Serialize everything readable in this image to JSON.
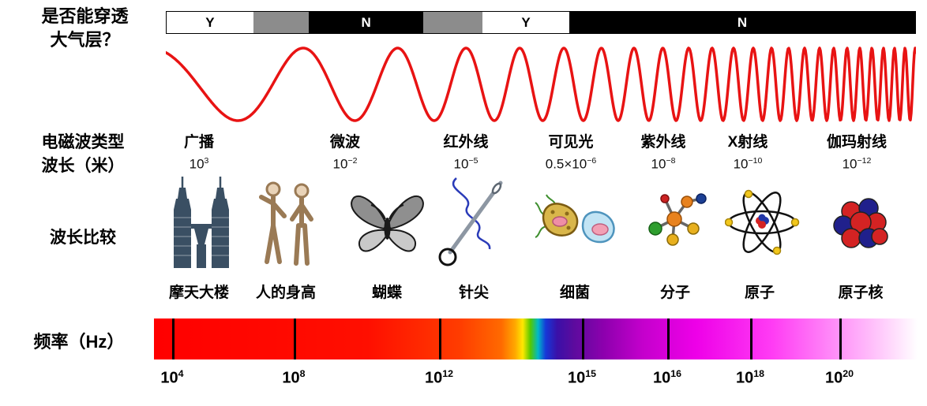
{
  "atmosphere": {
    "line1": "是否能穿透",
    "line2": "大气层？"
  },
  "penetration_bar": {
    "segments": [
      {
        "label": "Y",
        "bg": "#ffffff",
        "fg": "#000000",
        "width_pct": 11.6
      },
      {
        "label": "",
        "bg": "#8c8c8c",
        "fg": "#ffffff",
        "width_pct": 7.4
      },
      {
        "label": "N",
        "bg": "#000000",
        "fg": "#ffffff",
        "width_pct": 15.3
      },
      {
        "label": "",
        "bg": "#8c8c8c",
        "fg": "#ffffff",
        "width_pct": 7.9
      },
      {
        "label": "Y",
        "bg": "#ffffff",
        "fg": "#000000",
        "width_pct": 11.6
      },
      {
        "label": "N",
        "bg": "#000000",
        "fg": "#ffffff",
        "width_pct": 46.2
      }
    ]
  },
  "row_labels": {
    "wave_type": "电磁波类型",
    "wavelength": "波长（米）",
    "comparison": "波长比较",
    "frequency": "频率（Hz）"
  },
  "bands": [
    {
      "name": "广播",
      "wl_base": "10",
      "wl_exp": "3"
    },
    {
      "name": "微波",
      "wl_base": "10",
      "wl_exp": "−2"
    },
    {
      "name": "红外线",
      "wl_base": "10",
      "wl_exp": "−5"
    },
    {
      "name": "可见光",
      "wl_base": "0.5×10",
      "wl_exp": "−6"
    },
    {
      "name": "紫外线",
      "wl_base": "10",
      "wl_exp": "−8"
    },
    {
      "name": "X射线",
      "wl_base": "10",
      "wl_exp": "−10"
    },
    {
      "name": "伽玛射线",
      "wl_base": "10",
      "wl_exp": "−12"
    }
  ],
  "comparisons": [
    {
      "label": "摩天大楼",
      "icon": "skyscraper-icon"
    },
    {
      "label": "人的身高",
      "icon": "human-figures-icon"
    },
    {
      "label": "蝴蝶",
      "icon": "butterfly-icon"
    },
    {
      "label": "针尖",
      "icon": "needle-icon"
    },
    {
      "label": "细菌",
      "icon": "bacteria-icon"
    },
    {
      "label": "分子",
      "icon": "molecule-icon"
    },
    {
      "label": "原子",
      "icon": "atom-icon"
    },
    {
      "label": "原子核",
      "icon": "nucleus-icon"
    }
  ],
  "frequency_axis": {
    "ticks": [
      {
        "base": "10",
        "exp": "4"
      },
      {
        "base": "10",
        "exp": "8"
      },
      {
        "base": "10",
        "exp": "12"
      },
      {
        "base": "10",
        "exp": "15"
      },
      {
        "base": "10",
        "exp": "16"
      },
      {
        "base": "10",
        "exp": "18"
      },
      {
        "base": "10",
        "exp": "20"
      }
    ],
    "gradient_stops": [
      "#ff0000 0%",
      "#ff0f00 28%",
      "#ff3c00 40%",
      "#ff6a00 45.5%",
      "#ffa800 47.3%",
      "#ffe800 48.3%",
      "#55c800 49.3%",
      "#00b8c8 50.3%",
      "#1638d8 51.3%",
      "#3a10a8 52.8%",
      "#5c0b9e 55%",
      "#8e00ae 59%",
      "#c400cc 64%",
      "#ee00e8 71%",
      "#ff3cf4 81%",
      "#ff8cf8 89%",
      "#ffc8fb 95%",
      "#ffffff 100%"
    ]
  },
  "wave": {
    "color": "#e81313"
  }
}
